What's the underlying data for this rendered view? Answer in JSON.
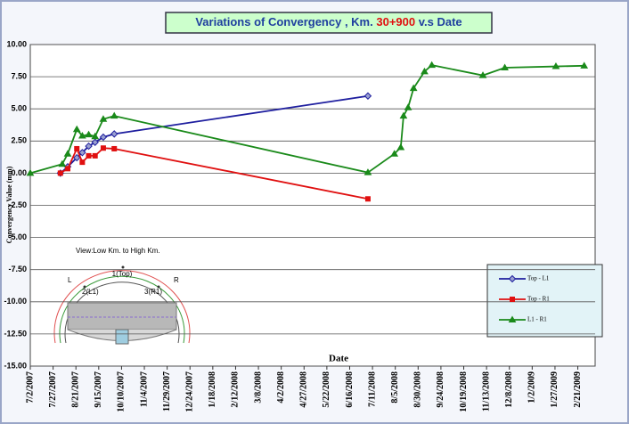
{
  "chart_data": {
    "type": "line",
    "title_parts": [
      "Variations of Convergency  ,  Km.",
      "30+900",
      "v.s Date"
    ],
    "y_label": "Convergency Value (mm)",
    "x_label": "Date",
    "xlim": [
      "2007-07-02",
      "2009-03-12"
    ],
    "xticks": [
      {
        "value": "2007-07-02",
        "label": "7/2/2007"
      },
      {
        "value": "2007-07-27",
        "label": "7/27/2007"
      },
      {
        "value": "2007-08-21",
        "label": "8/21/2007"
      },
      {
        "value": "2007-09-15",
        "label": "9/15/2007"
      },
      {
        "value": "2007-10-10",
        "label": "10/10/2007"
      },
      {
        "value": "2007-11-04",
        "label": "11/4/2007"
      },
      {
        "value": "2007-11-29",
        "label": "11/29/2007"
      },
      {
        "value": "2007-12-24",
        "label": "12/24/2007"
      },
      {
        "value": "2008-01-18",
        "label": "1/18/2008"
      },
      {
        "value": "2008-02-12",
        "label": "2/12/2008"
      },
      {
        "value": "2008-03-08",
        "label": "3/8/2008"
      },
      {
        "value": "2008-04-02",
        "label": "4/2/2008"
      },
      {
        "value": "2008-04-27",
        "label": "4/27/2008"
      },
      {
        "value": "2008-05-22",
        "label": "5/22/2008"
      },
      {
        "value": "2008-06-16",
        "label": "6/16/2008"
      },
      {
        "value": "2008-07-11",
        "label": "7/11/2008"
      },
      {
        "value": "2008-08-05",
        "label": "8/5/2008"
      },
      {
        "value": "2008-08-30",
        "label": "8/30/2008"
      },
      {
        "value": "2008-09-24",
        "label": "9/24/2008"
      },
      {
        "value": "2008-10-19",
        "label": "10/19/2008"
      },
      {
        "value": "2008-11-13",
        "label": "11/13/2008"
      },
      {
        "value": "2008-12-08",
        "label": "12/8/2008"
      },
      {
        "value": "2009-01-02",
        "label": "1/2/2009"
      },
      {
        "value": "2009-01-27",
        "label": "1/27/2009"
      },
      {
        "value": "2009-02-21",
        "label": "2/21/2009"
      }
    ],
    "ylim": [
      -15,
      10
    ],
    "yticks": [
      {
        "value": 10,
        "label": "10.00"
      },
      {
        "value": 7.5,
        "label": "7.50"
      },
      {
        "value": 5,
        "label": "5.00"
      },
      {
        "value": 2.5,
        "label": "2.50"
      },
      {
        "value": 0,
        "label": "0.00"
      },
      {
        "value": -2.5,
        "label": "-2.50"
      },
      {
        "value": -5,
        "label": "-5.00"
      },
      {
        "value": -7.5,
        "label": "-7.50"
      },
      {
        "value": -10,
        "label": "-10.00"
      },
      {
        "value": -12.5,
        "label": "-12.50"
      },
      {
        "value": -15,
        "label": "-15.00"
      }
    ],
    "grid": true,
    "legend_position": "bottom-right",
    "series": [
      {
        "name": "Top - L1",
        "color": "#1f1f9f",
        "marker": "diamond",
        "x": [
          "2007-08-04",
          "2007-08-12",
          "2007-08-22",
          "2007-08-28",
          "2007-09-04",
          "2007-09-11",
          "2007-09-20",
          "2007-10-02",
          "2008-07-06"
        ],
        "values": [
          0,
          0.5,
          1.2,
          1.6,
          2.1,
          2.4,
          2.8,
          3.05,
          6.0
        ]
      },
      {
        "name": "Top - R1",
        "color": "#e01010",
        "marker": "square",
        "x": [
          "2007-08-04",
          "2007-08-12",
          "2007-08-22",
          "2007-08-28",
          "2007-09-04",
          "2007-09-11",
          "2007-09-20",
          "2007-10-02",
          "2008-07-06"
        ],
        "values": [
          0,
          0.35,
          1.9,
          0.85,
          1.35,
          1.35,
          1.95,
          1.9,
          -2.0
        ]
      },
      {
        "name": "L1 - R1",
        "color": "#1a8a1a",
        "marker": "triangle",
        "x": [
          "2007-07-02",
          "2007-08-06",
          "2007-08-12",
          "2007-08-22",
          "2007-08-28",
          "2007-09-04",
          "2007-09-11",
          "2007-09-20",
          "2007-10-02",
          "2008-07-06",
          "2008-08-04",
          "2008-08-11",
          "2008-08-14",
          "2008-08-19",
          "2008-08-25",
          "2008-09-06",
          "2008-09-14",
          "2008-11-09",
          "2008-12-03",
          "2009-01-28",
          "2009-02-28"
        ],
        "values": [
          0,
          0.7,
          1.5,
          3.4,
          2.9,
          3.0,
          2.85,
          4.2,
          4.45,
          0.05,
          1.5,
          2.0,
          4.45,
          5.1,
          6.6,
          7.9,
          8.4,
          7.6,
          8.2,
          8.3,
          8.35
        ]
      }
    ],
    "inset": {
      "caption": "View:Low Km. to High Km.",
      "left": "L",
      "right": "R",
      "points": [
        "1(Top)",
        "2(L1)",
        "3(R1)"
      ]
    }
  }
}
